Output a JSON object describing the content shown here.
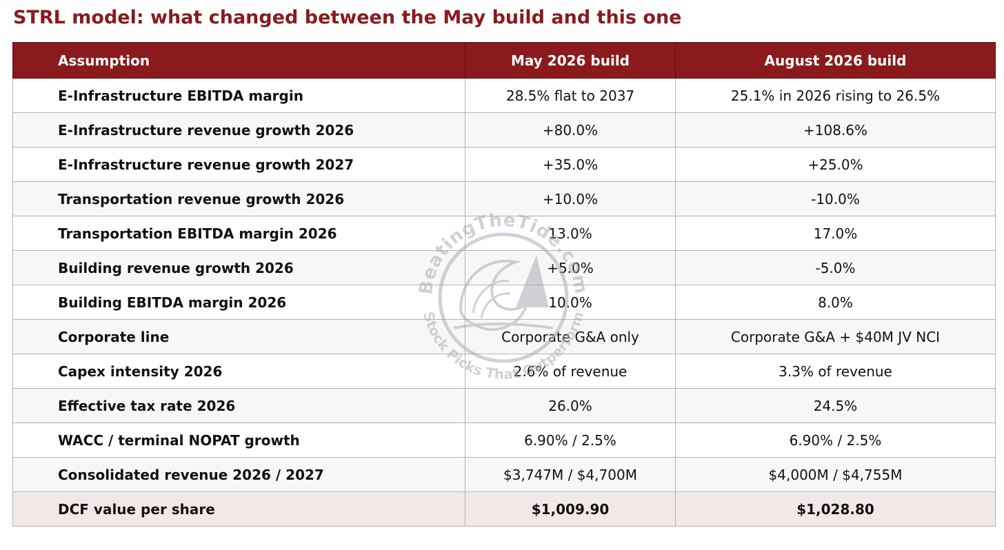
{
  "title": "STRL model: what changed between the May build and this one",
  "table": {
    "headers": [
      "Assumption",
      "May 2026 build",
      "August 2026 build"
    ],
    "rows": [
      {
        "assumption": "E-Infrastructure EBITDA margin",
        "may": "28.5% flat to 2037",
        "aug": "25.1% in 2026 rising to 26.5%"
      },
      {
        "assumption": "E-Infrastructure revenue growth 2026",
        "may": "+80.0%",
        "aug": "+108.6%"
      },
      {
        "assumption": "E-Infrastructure revenue growth 2027",
        "may": "+35.0%",
        "aug": "+25.0%"
      },
      {
        "assumption": "Transportation revenue growth 2026",
        "may": "+10.0%",
        "aug": "-10.0%"
      },
      {
        "assumption": "Transportation EBITDA margin 2026",
        "may": "13.0%",
        "aug": "17.0%"
      },
      {
        "assumption": "Building revenue growth 2026",
        "may": "+5.0%",
        "aug": "-5.0%"
      },
      {
        "assumption": "Building EBITDA margin 2026",
        "may": "10.0%",
        "aug": "8.0%"
      },
      {
        "assumption": "Corporate line",
        "may": "Corporate G&A only",
        "aug": "Corporate G&A + $40M JV NCI"
      },
      {
        "assumption": "Capex intensity 2026",
        "may": "2.6% of revenue",
        "aug": "3.3% of revenue"
      },
      {
        "assumption": "Effective tax rate 2026",
        "may": "26.0%",
        "aug": "24.5%"
      },
      {
        "assumption": "WACC / terminal NOPAT growth",
        "may": "6.90% / 2.5%",
        "aug": "6.90% / 2.5%"
      },
      {
        "assumption": "Consolidated revenue 2026 / 2027",
        "may": "$3,747M / $4,700M",
        "aug": "$4,000M / $4,755M"
      },
      {
        "assumption": "DCF value per share",
        "may": "$1,009.90",
        "aug": "$1,028.80"
      }
    ]
  },
  "watermark": {
    "top_text": "BeatingTheTide.com",
    "bottom_text": "Stock Picks That Outperform",
    "icon": "wave-sail-logo"
  },
  "colors": {
    "accent": "#8b1a1c",
    "total_row": "#f3e8e8",
    "watermark": "#a9adb6"
  }
}
